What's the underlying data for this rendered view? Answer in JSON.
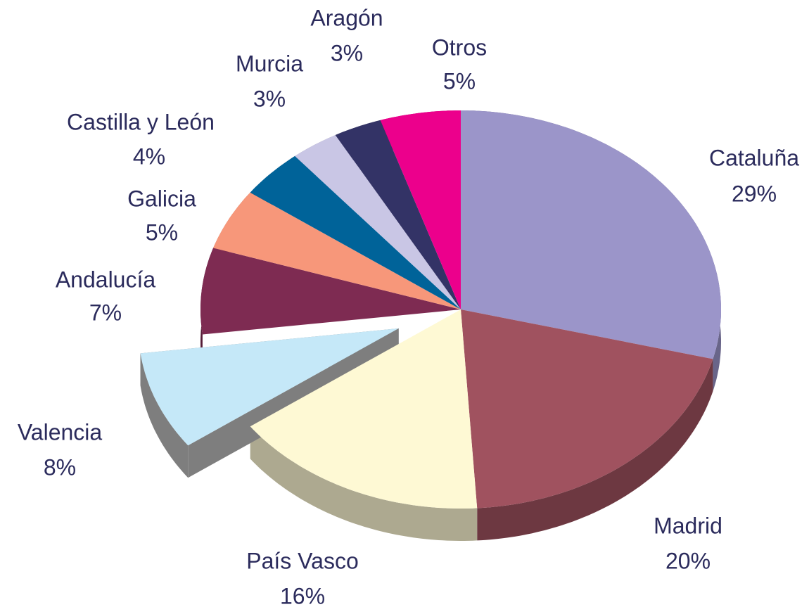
{
  "chart_data": {
    "type": "pie",
    "categories": [
      "Cataluña",
      "Madrid",
      "País Vasco",
      "Valencia",
      "Andalucía",
      "Galicia",
      "Castilla y León",
      "Murcia",
      "Aragón",
      "Otros"
    ],
    "values": [
      29,
      20,
      16,
      8,
      7,
      5,
      4,
      3,
      3,
      5
    ],
    "value_labels": [
      "29%",
      "20%",
      "16%",
      "8%",
      "7%",
      "5%",
      "4%",
      "3%",
      "3%",
      "5%"
    ],
    "colors": [
      "#9b95c9",
      "#a0525f",
      "#fef9d4",
      "#c5e8f8",
      "#7e2b52",
      "#f7977a",
      "#006399",
      "#c9c6e5",
      "#333366",
      "#ec008c"
    ],
    "exploded": [
      "Valencia"
    ]
  }
}
